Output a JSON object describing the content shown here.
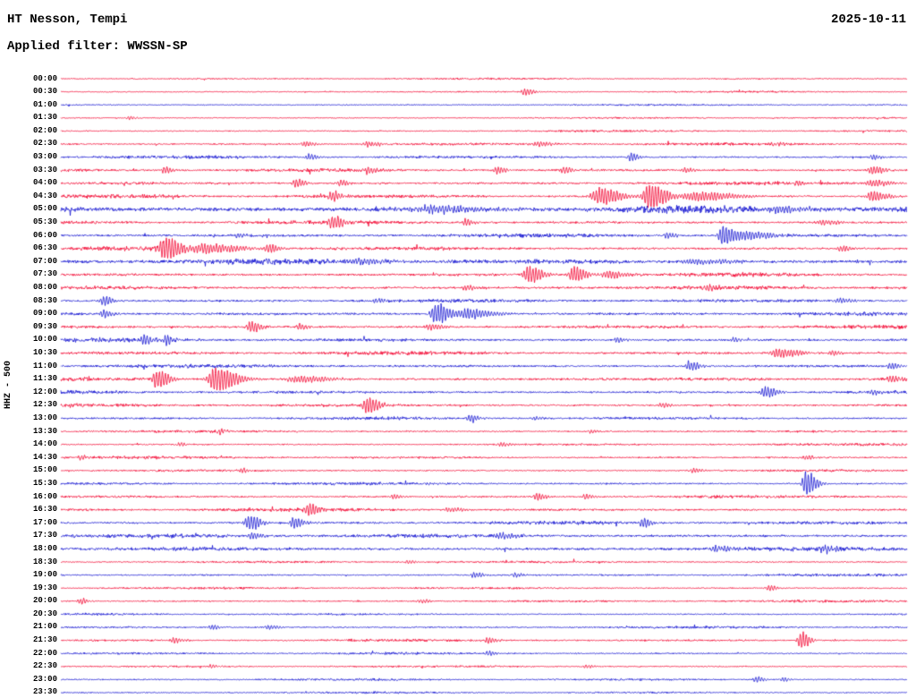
{
  "header": {
    "station": "HT Nesson, Tempi",
    "date": "2025-10-11",
    "filter": "Applied filter: WWSSN-SP"
  },
  "y_axis_label": "HHZ - 500",
  "colors": {
    "red": "#f2002e",
    "blue": "#1212d0",
    "text": "#000000",
    "background": "#ffffff"
  },
  "chart_data": {
    "type": "line",
    "subtype": "helicorder-seismogram",
    "title": "HT Nesson, Tempi",
    "subtitle": "Applied filter: WWSSN-SP",
    "date": "2025-10-11",
    "channel": "HHZ - 500",
    "minutes_per_row": 30,
    "legend": "each row = 30 minutes, colors alternate red/blue, events given as [position 0-1, amplitude px, width fraction]",
    "rows": [
      {
        "time": "00:00",
        "color": "red",
        "noise": 0.7,
        "events": []
      },
      {
        "time": "00:30",
        "color": "red",
        "noise": 0.7,
        "events": [
          [
            0.547,
            4,
            0.006
          ]
        ]
      },
      {
        "time": "01:00",
        "color": "blue",
        "noise": 0.7,
        "events": []
      },
      {
        "time": "01:30",
        "color": "red",
        "noise": 0.7,
        "events": [
          [
            0.08,
            2.5,
            0.004
          ]
        ]
      },
      {
        "time": "02:00",
        "color": "red",
        "noise": 0.8,
        "events": []
      },
      {
        "time": "02:30",
        "color": "red",
        "noise": 1.1,
        "events": [
          [
            0.288,
            3,
            0.006
          ],
          [
            0.362,
            3,
            0.008
          ],
          [
            0.562,
            3,
            0.01
          ],
          [
            0.84,
            2.5,
            0.006
          ]
        ]
      },
      {
        "time": "03:00",
        "color": "blue",
        "noise": 1.2,
        "events": [
          [
            0.293,
            4,
            0.005
          ],
          [
            0.673,
            6,
            0.004
          ],
          [
            0.959,
            3,
            0.005
          ]
        ]
      },
      {
        "time": "03:30",
        "color": "red",
        "noise": 1.3,
        "events": [
          [
            0.122,
            4,
            0.005
          ],
          [
            0.362,
            4,
            0.006
          ],
          [
            0.515,
            5,
            0.005
          ],
          [
            0.594,
            4,
            0.005
          ],
          [
            0.737,
            3.5,
            0.005
          ],
          [
            0.959,
            6,
            0.006
          ]
        ]
      },
      {
        "time": "04:00",
        "color": "red",
        "noise": 1.4,
        "events": [
          [
            0.277,
            6,
            0.005
          ],
          [
            0.33,
            4,
            0.005
          ],
          [
            0.869,
            3,
            0.004
          ],
          [
            0.959,
            4,
            0.01
          ]
        ]
      },
      {
        "time": "04:30",
        "color": "red",
        "noise": 1.5,
        "events": [
          [
            0.319,
            7,
            0.006
          ],
          [
            0.636,
            11,
            0.012
          ],
          [
            0.695,
            15,
            0.01
          ],
          [
            0.75,
            6,
            0.02
          ],
          [
            0.959,
            7,
            0.008
          ]
        ]
      },
      {
        "time": "05:00",
        "color": "blue",
        "noise": 2.8,
        "events": [
          [
            0.44,
            4,
            0.03
          ],
          [
            0.85,
            3.5,
            0.02
          ]
        ]
      },
      {
        "time": "05:30",
        "color": "red",
        "noise": 1.4,
        "events": [
          [
            0.321,
            9,
            0.006
          ],
          [
            0.478,
            4,
            0.005
          ],
          [
            0.9,
            3,
            0.01
          ]
        ]
      },
      {
        "time": "06:00",
        "color": "blue",
        "noise": 1.5,
        "events": [
          [
            0.208,
            3,
            0.004
          ],
          [
            0.716,
            4,
            0.005
          ],
          [
            0.782,
            13,
            0.007
          ],
          [
            0.81,
            5,
            0.015
          ]
        ]
      },
      {
        "time": "06:30",
        "color": "red",
        "noise": 1.6,
        "events": [
          [
            0.122,
            13,
            0.01
          ],
          [
            0.17,
            6,
            0.02
          ],
          [
            0.245,
            5,
            0.006
          ],
          [
            0.922,
            4,
            0.006
          ]
        ]
      },
      {
        "time": "07:00",
        "color": "blue",
        "noise": 2.2,
        "events": [
          [
            0.35,
            3,
            0.02
          ],
          [
            0.75,
            3,
            0.02
          ]
        ]
      },
      {
        "time": "07:30",
        "color": "red",
        "noise": 1.5,
        "events": [
          [
            0.552,
            11,
            0.008
          ],
          [
            0.605,
            10,
            0.007
          ],
          [
            0.647,
            5,
            0.01
          ]
        ]
      },
      {
        "time": "08:00",
        "color": "red",
        "noise": 1.6,
        "events": [
          [
            0.478,
            3.5,
            0.006
          ],
          [
            0.763,
            4,
            0.006
          ]
        ]
      },
      {
        "time": "08:30",
        "color": "blue",
        "noise": 1.4,
        "events": [
          [
            0.05,
            6,
            0.005
          ],
          [
            0.372,
            3,
            0.006
          ],
          [
            0.92,
            3,
            0.008
          ]
        ]
      },
      {
        "time": "09:00",
        "color": "blue",
        "noise": 1.5,
        "events": [
          [
            0.05,
            5,
            0.005
          ],
          [
            0.443,
            14,
            0.008
          ],
          [
            0.48,
            6,
            0.015
          ]
        ]
      },
      {
        "time": "09:30",
        "color": "red",
        "noise": 1.5,
        "events": [
          [
            0.224,
            7,
            0.006
          ],
          [
            0.282,
            4,
            0.005
          ],
          [
            0.436,
            4,
            0.008
          ]
        ]
      },
      {
        "time": "10:00",
        "color": "blue",
        "noise": 1.5,
        "events": [
          [
            0.097,
            6,
            0.005
          ],
          [
            0.124,
            6,
            0.005
          ],
          [
            0.657,
            3,
            0.004
          ],
          [
            0.795,
            3,
            0.004
          ]
        ]
      },
      {
        "time": "10:30",
        "color": "red",
        "noise": 1.4,
        "events": [
          [
            0.848,
            6,
            0.012
          ],
          [
            0.911,
            3,
            0.005
          ]
        ]
      },
      {
        "time": "11:00",
        "color": "blue",
        "noise": 1.4,
        "events": [
          [
            0.742,
            6,
            0.006
          ],
          [
            0.98,
            4,
            0.005
          ]
        ]
      },
      {
        "time": "11:30",
        "color": "red",
        "noise": 1.5,
        "events": [
          [
            0.113,
            12,
            0.007
          ],
          [
            0.182,
            15,
            0.012
          ],
          [
            0.28,
            4,
            0.02
          ],
          [
            0.98,
            4,
            0.006
          ]
        ]
      },
      {
        "time": "12:00",
        "color": "blue",
        "noise": 1.4,
        "events": [
          [
            0.832,
            7,
            0.007
          ],
          [
            0.959,
            3,
            0.005
          ]
        ]
      },
      {
        "time": "12:30",
        "color": "red",
        "noise": 1.3,
        "events": [
          [
            0.362,
            10,
            0.007
          ],
          [
            0.71,
            3,
            0.005
          ]
        ]
      },
      {
        "time": "13:00",
        "color": "blue",
        "noise": 1.2,
        "events": [
          [
            0.483,
            5,
            0.005
          ],
          [
            0.56,
            2.5,
            0.004
          ]
        ]
      },
      {
        "time": "13:30",
        "color": "red",
        "noise": 1.0,
        "events": [
          [
            0.187,
            3,
            0.005
          ],
          [
            0.626,
            2.5,
            0.004
          ]
        ]
      },
      {
        "time": "14:00",
        "color": "red",
        "noise": 1.0,
        "events": [
          [
            0.14,
            2.5,
            0.004
          ],
          [
            0.52,
            2.5,
            0.005
          ]
        ]
      },
      {
        "time": "14:30",
        "color": "red",
        "noise": 1.1,
        "events": [
          [
            0.023,
            3,
            0.004
          ],
          [
            0.88,
            3,
            0.005
          ]
        ]
      },
      {
        "time": "15:00",
        "color": "red",
        "noise": 1.0,
        "events": [
          [
            0.214,
            3,
            0.004
          ],
          [
            0.747,
            3,
            0.005
          ]
        ]
      },
      {
        "time": "15:30",
        "color": "blue",
        "noise": 1.1,
        "events": [
          [
            0.88,
            15,
            0.006
          ]
        ]
      },
      {
        "time": "16:00",
        "color": "red",
        "noise": 1.2,
        "events": [
          [
            0.393,
            3,
            0.005
          ],
          [
            0.562,
            5,
            0.005
          ],
          [
            0.62,
            3,
            0.005
          ]
        ]
      },
      {
        "time": "16:30",
        "color": "red",
        "noise": 1.3,
        "events": [
          [
            0.293,
            8,
            0.006
          ],
          [
            0.46,
            3,
            0.008
          ]
        ]
      },
      {
        "time": "17:00",
        "color": "blue",
        "noise": 1.4,
        "events": [
          [
            0.222,
            9,
            0.007
          ],
          [
            0.275,
            7,
            0.006
          ],
          [
            0.687,
            6,
            0.005
          ]
        ]
      },
      {
        "time": "17:30",
        "color": "blue",
        "noise": 1.6,
        "events": [
          [
            0.225,
            4,
            0.006
          ],
          [
            0.52,
            3,
            0.01
          ]
        ]
      },
      {
        "time": "18:00",
        "color": "blue",
        "noise": 1.8,
        "events": [
          [
            0.774,
            3.5,
            0.01
          ],
          [
            0.901,
            3.5,
            0.008
          ]
        ]
      },
      {
        "time": "18:30",
        "color": "red",
        "noise": 0.9,
        "events": [
          [
            0.41,
            2.5,
            0.004
          ]
        ]
      },
      {
        "time": "19:00",
        "color": "blue",
        "noise": 1.0,
        "events": [
          [
            0.488,
            3.5,
            0.005
          ],
          [
            0.536,
            3,
            0.004
          ]
        ]
      },
      {
        "time": "19:30",
        "color": "red",
        "noise": 0.9,
        "events": [
          [
            0.837,
            3.5,
            0.005
          ]
        ]
      },
      {
        "time": "20:00",
        "color": "red",
        "noise": 1.0,
        "events": [
          [
            0.023,
            4,
            0.004
          ],
          [
            0.425,
            2.5,
            0.005
          ]
        ]
      },
      {
        "time": "20:30",
        "color": "blue",
        "noise": 0.9,
        "events": []
      },
      {
        "time": "21:00",
        "color": "blue",
        "noise": 1.0,
        "events": [
          [
            0.177,
            3,
            0.005
          ],
          [
            0.245,
            3,
            0.006
          ]
        ]
      },
      {
        "time": "21:30",
        "color": "red",
        "noise": 1.0,
        "events": [
          [
            0.134,
            3.5,
            0.005
          ],
          [
            0.504,
            4,
            0.005
          ],
          [
            0.874,
            11,
            0.005
          ]
        ]
      },
      {
        "time": "22:00",
        "color": "blue",
        "noise": 0.9,
        "events": [
          [
            0.504,
            3,
            0.004
          ]
        ]
      },
      {
        "time": "22:30",
        "color": "red",
        "noise": 0.8,
        "events": [
          [
            0.177,
            2.5,
            0.004
          ],
          [
            0.62,
            2.5,
            0.004
          ]
        ]
      },
      {
        "time": "23:00",
        "color": "blue",
        "noise": 0.9,
        "events": [
          [
            0.821,
            3.5,
            0.005
          ],
          [
            0.853,
            2.5,
            0.004
          ]
        ]
      },
      {
        "time": "23:30",
        "color": "blue",
        "noise": 0.8,
        "events": []
      }
    ]
  }
}
